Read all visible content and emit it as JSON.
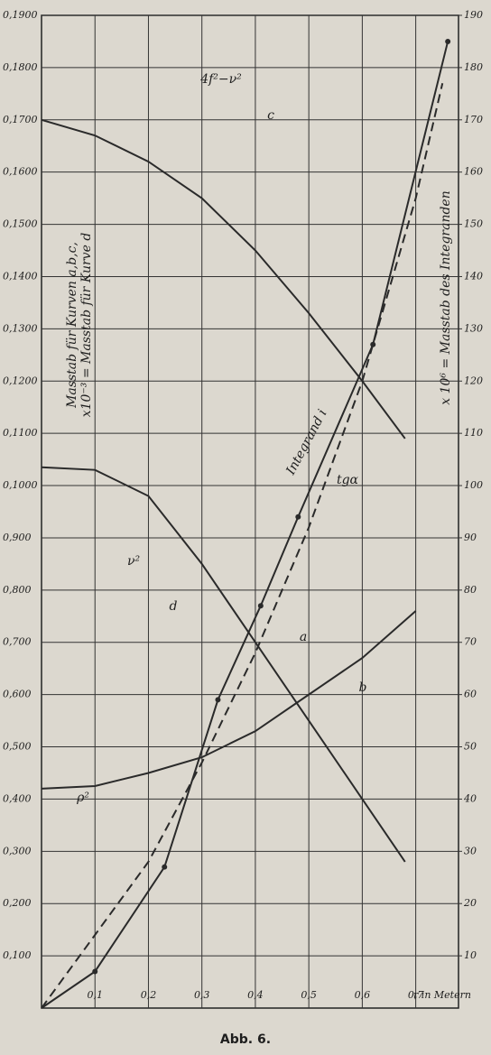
{
  "chart_data": {
    "type": "line",
    "caption": "Abb. 6.",
    "xlabel": "r in Metern",
    "ylabel": [
      "Masstab für Kurven a,b,c,",
      "x10⁻³ = Masstab für Kurve d"
    ],
    "y2label": "x 10⁶ = Masstab des Integranden",
    "xlim": [
      0,
      0.78
    ],
    "xticks": [
      {
        "value": 0.1,
        "label": "0,1"
      },
      {
        "value": 0.2,
        "label": "0,2"
      },
      {
        "value": 0.3,
        "label": "0,3"
      },
      {
        "value": 0.4,
        "label": "0,4"
      },
      {
        "value": 0.5,
        "label": "0,5"
      },
      {
        "value": 0.6,
        "label": "0,6"
      },
      {
        "value": 0.7,
        "label": "0,7"
      }
    ],
    "ylim": [
      0,
      0.19
    ],
    "yticks": [
      {
        "value": 0.01,
        "label": "0,100"
      },
      {
        "value": 0.02,
        "label": "0,200"
      },
      {
        "value": 0.03,
        "label": "0,300"
      },
      {
        "value": 0.04,
        "label": "0,400"
      },
      {
        "value": 0.05,
        "label": "0,500"
      },
      {
        "value": 0.06,
        "label": "0,600"
      },
      {
        "value": 0.07,
        "label": "0,700"
      },
      {
        "value": 0.08,
        "label": "0,800"
      },
      {
        "value": 0.09,
        "label": "0,900"
      },
      {
        "value": 0.1,
        "label": "0,1000"
      },
      {
        "value": 0.11,
        "label": "0,1100"
      },
      {
        "value": 0.12,
        "label": "0,1200"
      },
      {
        "value": 0.13,
        "label": "0,1300"
      },
      {
        "value": 0.14,
        "label": "0,1400"
      },
      {
        "value": 0.15,
        "label": "0,1500"
      },
      {
        "value": 0.16,
        "label": "0,1600"
      },
      {
        "value": 0.17,
        "label": "0,1700"
      },
      {
        "value": 0.18,
        "label": "0,1800"
      },
      {
        "value": 0.19,
        "label": "0,1900"
      }
    ],
    "y2lim": [
      0,
      190
    ],
    "y2ticks": [
      10,
      20,
      30,
      40,
      50,
      60,
      70,
      80,
      90,
      100,
      110,
      120,
      130,
      140,
      150,
      160,
      170,
      180,
      190
    ],
    "grid": true,
    "series": [
      {
        "name": "c",
        "color": "#2a2a2a",
        "axis": "y2",
        "x": [
          0,
          0.1,
          0.2,
          0.3,
          0.4,
          0.5,
          0.6,
          0.68
        ],
        "values": [
          170,
          167,
          162,
          155,
          145,
          133,
          120,
          109
        ]
      },
      {
        "name": "d",
        "color": "#2a2a2a",
        "axis": "y2",
        "x": [
          0,
          0.1,
          0.2,
          0.3,
          0.4,
          0.5,
          0.6,
          0.68
        ],
        "values": [
          103.5,
          103,
          98,
          85,
          70,
          55,
          40,
          28
        ]
      },
      {
        "name": "b",
        "color": "#2a2a2a",
        "axis": "y2",
        "x": [
          0,
          0.1,
          0.2,
          0.3,
          0.4,
          0.5,
          0.6,
          0.7
        ],
        "values": [
          42,
          42.5,
          45,
          48,
          53,
          60,
          67,
          76
        ]
      },
      {
        "name": "Integrand i",
        "color": "#2a2a2a",
        "axis": "y2",
        "markers": true,
        "x": [
          0,
          0.1,
          0.23,
          0.33,
          0.41,
          0.48,
          0.62,
          0.76
        ],
        "values": [
          0,
          7,
          27,
          59,
          77,
          94,
          127,
          185
        ]
      },
      {
        "name": "a",
        "color": "#2a2a2a",
        "axis": "y2",
        "dashed": true,
        "x": [
          0,
          0.2,
          0.3,
          0.4,
          0.5,
          0.6,
          0.7,
          0.75
        ],
        "values": [
          0,
          28,
          47,
          68,
          92,
          120,
          155,
          177
        ]
      }
    ],
    "annotations": [
      "4f²−ν²",
      "ν²",
      "ρ²",
      "tgα"
    ]
  }
}
